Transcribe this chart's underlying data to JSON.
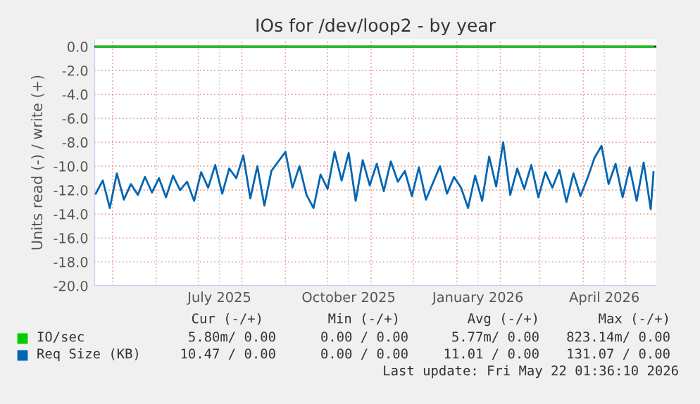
{
  "chart_data": {
    "type": "line",
    "title": "IOs for /dev/loop2 - by year",
    "ylabel": "Units read (-) / write (+)",
    "xlim": [
      "2025-04-18",
      "2026-05-23"
    ],
    "xticks": [
      {
        "value": "2025-05-01",
        "label": null
      },
      {
        "value": "2025-06-01",
        "label": null
      },
      {
        "value": "2025-07-01",
        "label": null
      },
      {
        "value": "2025-07-16",
        "label": "July 2025"
      },
      {
        "value": "2025-08-01",
        "label": null
      },
      {
        "value": "2025-09-01",
        "label": null
      },
      {
        "value": "2025-10-01",
        "label": null
      },
      {
        "value": "2025-10-16",
        "label": "October 2025"
      },
      {
        "value": "2025-11-01",
        "label": null
      },
      {
        "value": "2025-12-01",
        "label": null
      },
      {
        "value": "2026-01-01",
        "label": null
      },
      {
        "value": "2026-01-16",
        "label": "January 2026"
      },
      {
        "value": "2026-02-01",
        "label": null
      },
      {
        "value": "2026-03-01",
        "label": null
      },
      {
        "value": "2026-04-01",
        "label": null
      },
      {
        "value": "2026-04-16",
        "label": "April 2026"
      },
      {
        "value": "2026-05-01",
        "label": null
      }
    ],
    "ylim": [
      -20,
      0.6
    ],
    "yticks": [
      {
        "value": 0,
        "label": "0.0"
      },
      {
        "value": -2,
        "label": "-2.0"
      },
      {
        "value": -4,
        "label": "-4.0"
      },
      {
        "value": -6,
        "label": "-6.0"
      },
      {
        "value": -8,
        "label": "-8.0"
      },
      {
        "value": -10,
        "label": "-10.0"
      },
      {
        "value": -12,
        "label": "-12.0"
      },
      {
        "value": -14,
        "label": "-14.0"
      },
      {
        "value": -16,
        "label": "-16.0"
      },
      {
        "value": -18,
        "label": "-18.0"
      },
      {
        "value": -20,
        "label": "-20.0"
      }
    ],
    "grid": true,
    "legend": "bottom",
    "ref_lines": [
      {
        "axis": "y",
        "value": 0,
        "label": null,
        "color": "#000000"
      }
    ],
    "x": [
      "2025-04-19",
      "2025-04-24",
      "2025-04-29",
      "2025-05-04",
      "2025-05-09",
      "2025-05-14",
      "2025-05-19",
      "2025-05-24",
      "2025-05-29",
      "2025-06-03",
      "2025-06-08",
      "2025-06-13",
      "2025-06-18",
      "2025-06-23",
      "2025-06-28",
      "2025-07-03",
      "2025-07-08",
      "2025-07-13",
      "2025-07-18",
      "2025-07-23",
      "2025-07-28",
      "2025-08-02",
      "2025-08-07",
      "2025-08-12",
      "2025-08-17",
      "2025-08-22",
      "2025-08-27",
      "2025-09-01",
      "2025-09-06",
      "2025-09-11",
      "2025-09-16",
      "2025-09-21",
      "2025-09-26",
      "2025-10-01",
      "2025-10-06",
      "2025-10-11",
      "2025-10-16",
      "2025-10-21",
      "2025-10-26",
      "2025-10-31",
      "2025-11-05",
      "2025-11-10",
      "2025-11-15",
      "2025-11-20",
      "2025-11-25",
      "2025-11-30",
      "2025-12-05",
      "2025-12-10",
      "2025-12-15",
      "2025-12-20",
      "2025-12-25",
      "2025-12-30",
      "2026-01-04",
      "2026-01-09",
      "2026-01-14",
      "2026-01-19",
      "2026-01-24",
      "2026-01-29",
      "2026-02-03",
      "2026-02-08",
      "2026-02-13",
      "2026-02-18",
      "2026-02-23",
      "2026-02-28",
      "2026-03-05",
      "2026-03-10",
      "2026-03-15",
      "2026-03-20",
      "2026-03-25",
      "2026-03-30",
      "2026-04-04",
      "2026-04-09",
      "2026-04-14",
      "2026-04-19",
      "2026-04-24",
      "2026-04-29",
      "2026-05-04",
      "2026-05-09",
      "2026-05-14",
      "2026-05-19",
      "2026-05-21"
    ],
    "series": [
      {
        "name": "IO/sec",
        "color": "#00cc00",
        "x": [
          "2025-04-19",
          "2026-05-21"
        ],
        "values": [
          0,
          0
        ]
      },
      {
        "name": "Req Size (KB)",
        "color": "#0066b3",
        "values": [
          -12.3,
          -11.2,
          -13.5,
          -10.6,
          -12.8,
          -11.5,
          -12.4,
          -10.9,
          -12.2,
          -11.0,
          -12.6,
          -10.8,
          -12.0,
          -11.3,
          -12.9,
          -10.5,
          -11.8,
          -9.9,
          -12.3,
          -10.2,
          -11.0,
          -9.1,
          -12.7,
          -10.0,
          -13.3,
          -10.4,
          -9.6,
          -8.8,
          -11.8,
          -10.0,
          -12.4,
          -13.5,
          -10.7,
          -11.9,
          -8.8,
          -11.2,
          -8.9,
          -12.9,
          -9.5,
          -11.6,
          -9.8,
          -12.1,
          -9.6,
          -11.3,
          -10.4,
          -12.5,
          -10.1,
          -12.8,
          -11.4,
          -10.0,
          -12.3,
          -10.9,
          -11.8,
          -13.5,
          -10.8,
          -12.9,
          -9.2,
          -11.7,
          -8.0,
          -12.4,
          -10.2,
          -11.9,
          -9.9,
          -12.6,
          -10.5,
          -11.8,
          -10.3,
          -13.0,
          -10.6,
          -12.5,
          -11.0,
          -9.3,
          -8.3,
          -11.5,
          -9.8,
          -12.6,
          -10.1,
          -12.9,
          -9.7,
          -13.6,
          -10.5
        ]
      }
    ],
    "annotations": [
      "Cur (-/+)",
      "Min (-/+)",
      "Avg (-/+)",
      "Max (-/+)",
      "5.80m/ 0.00",
      "0.00 / 0.00",
      "5.77m/ 0.00",
      "823.14m/ 0.00",
      "10.47 / 0.00",
      "0.00 / 0.00",
      "11.01 / 0.00",
      "131.07 / 0.00",
      "Last update: Fri May 22 01:36:10 2026"
    ]
  }
}
